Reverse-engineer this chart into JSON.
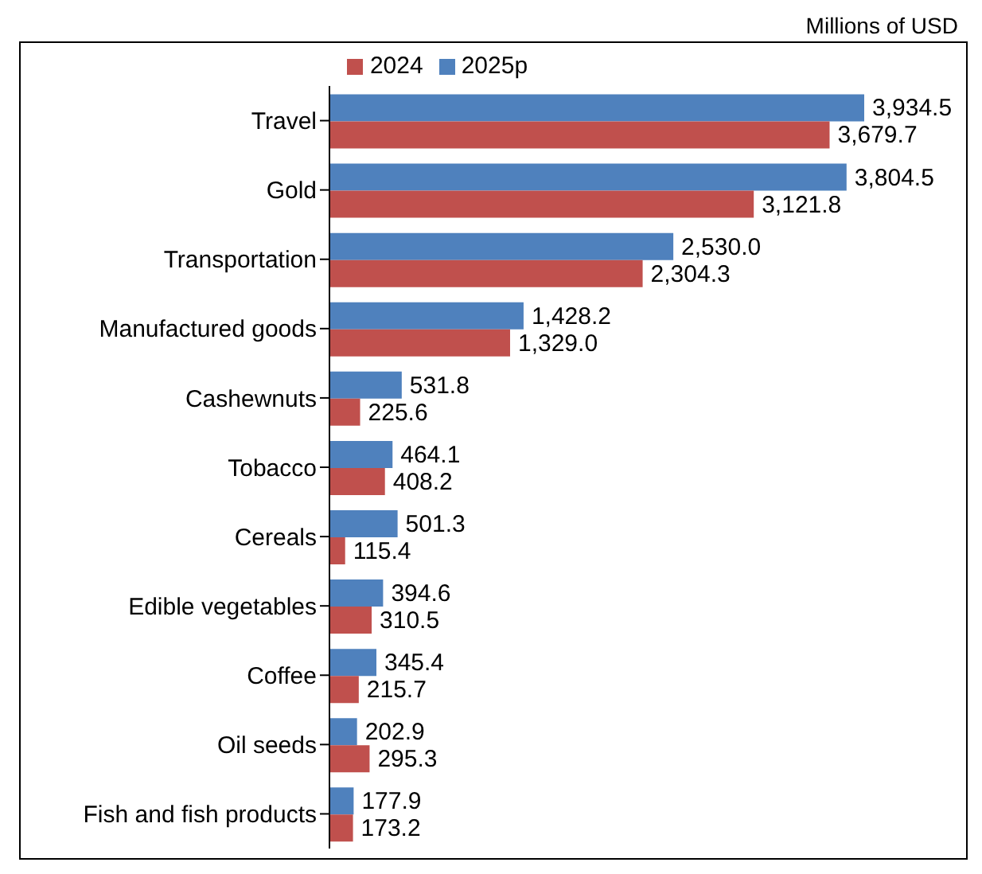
{
  "chart_data": {
    "type": "bar",
    "orientation": "horizontal",
    "annotations": [
      "Millions of USD"
    ],
    "legend": "top",
    "categories": [
      "Travel",
      "Gold",
      "Transportation",
      "Manufactured goods",
      "Cashewnuts",
      "Tobacco",
      "Cereals",
      "Edible vegetables",
      "Coffee",
      "Oil seeds",
      "Fish and fish products"
    ],
    "series": [
      {
        "name": "2025p",
        "color": "#4f81bd",
        "values": [
          3934.5,
          3804.5,
          2530.0,
          1428.2,
          531.8,
          464.1,
          501.3,
          394.6,
          345.4,
          202.9,
          177.9
        ],
        "value_labels": [
          "3,934.5",
          "3,804.5",
          "2,530.0",
          "1,428.2",
          "531.8",
          "464.1",
          "501.3",
          "394.6",
          "345.4",
          "202.9",
          "177.9"
        ]
      },
      {
        "name": "2024",
        "color": "#c0504d",
        "values": [
          3679.7,
          3121.8,
          2304.3,
          1329.0,
          225.6,
          408.2,
          115.4,
          310.5,
          215.7,
          295.3,
          173.2
        ],
        "value_labels": [
          "3,679.7",
          "3,121.8",
          "2,304.3",
          "1,329.0",
          "225.6",
          "408.2",
          "115.4",
          "310.5",
          "215.7",
          "295.3",
          "173.2"
        ]
      }
    ]
  }
}
